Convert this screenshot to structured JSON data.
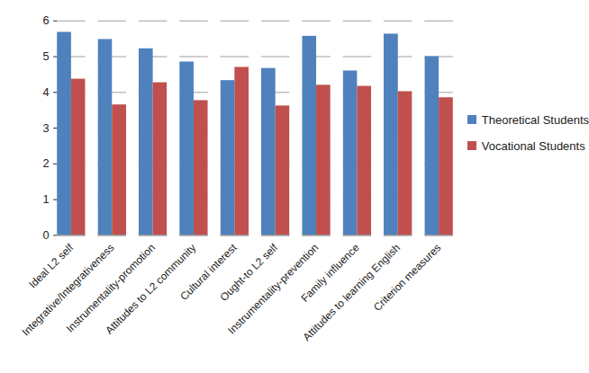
{
  "chart_data": {
    "type": "bar",
    "categories": [
      "Ideal L2 self",
      "Integrative/Integrativeness",
      "Instrumentality-promotion",
      "Attitudes to L2 community",
      "Cultural interest",
      "Ought-to L2 self",
      "Instrumentality-prevention",
      "Family influence",
      "Attitudes to learning English",
      "Criterion measures"
    ],
    "series": [
      {
        "name": "Theoretical Students",
        "color": "#4f81bd",
        "values": [
          5.68,
          5.48,
          5.22,
          4.85,
          4.33,
          4.67,
          5.57,
          4.6,
          5.63,
          5.0
        ]
      },
      {
        "name": "Vocational Students",
        "color": "#c0504d",
        "values": [
          4.37,
          3.65,
          4.27,
          3.77,
          4.7,
          3.62,
          4.2,
          4.17,
          4.02,
          3.85
        ]
      }
    ],
    "ylim": [
      0,
      6
    ],
    "yticks": [
      0,
      1,
      2,
      3,
      4,
      5,
      6
    ],
    "grid": true,
    "legend": "right"
  }
}
